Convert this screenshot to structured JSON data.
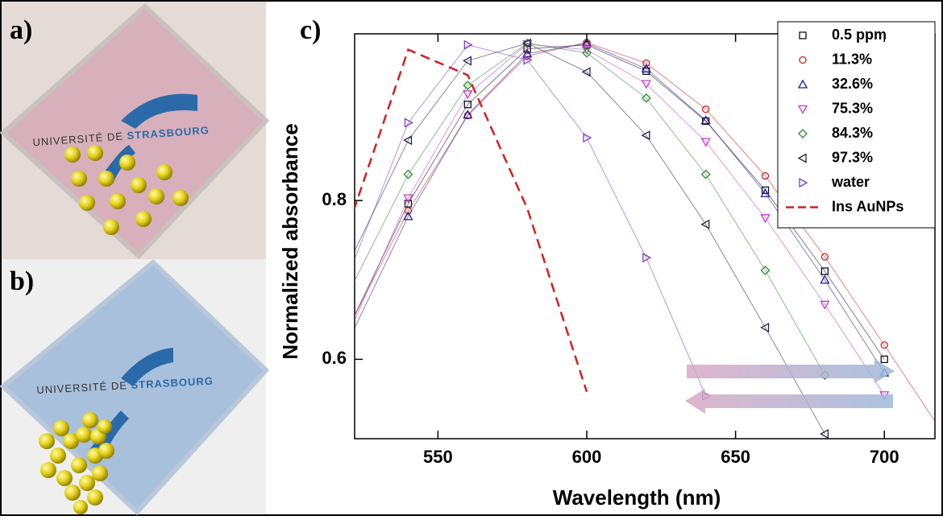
{
  "panel_labels": [
    "a)",
    "b)",
    "c)"
  ],
  "photo_logo": {
    "prefix": "UNIVERSITÉ DE",
    "suffix": "STRASBOURG"
  },
  "chart_data": {
    "type": "scatter",
    "x_label": "Wavelength (nm)",
    "y_label": "Normalized absorbance",
    "x": [
      520,
      540,
      560,
      580,
      600,
      620,
      640,
      660,
      680,
      700,
      720
    ],
    "xlim": [
      522,
      717
    ],
    "xticks": [
      550,
      600,
      650,
      700
    ],
    "ylim": [
      0.5,
      1.01
    ],
    "yticks": [
      0.6,
      0.8
    ],
    "legend": "upper right",
    "series": [
      {
        "name": "0.5 ppm",
        "color": "#111111",
        "marker": "square",
        "values": [
          0.64,
          0.796,
          0.921,
          0.991,
          0.996,
          0.963,
          0.9,
          0.813,
          0.711,
          0.6,
          null
        ]
      },
      {
        "name": "11.3%",
        "color": "#cc2222",
        "marker": "circle",
        "values": [
          0.64,
          0.787,
          0.907,
          0.982,
          0.999,
          0.973,
          0.915,
          0.831,
          0.729,
          0.618,
          0.505
        ]
      },
      {
        "name": "32.6%",
        "color": "#1c1c96",
        "marker": "triangle-up",
        "values": [
          0.624,
          0.78,
          0.908,
          0.985,
          0.998,
          0.966,
          0.901,
          0.809,
          0.7,
          0.583,
          null
        ]
      },
      {
        "name": "75.3%",
        "color": "#c43cc4",
        "marker": "triangle-down",
        "values": [
          0.632,
          0.803,
          0.934,
          0.997,
          0.99,
          0.947,
          0.874,
          0.778,
          0.669,
          0.555,
          null
        ]
      },
      {
        "name": "84.3%",
        "color": "#2a8a2a",
        "marker": "diamond",
        "values": [
          0.684,
          0.833,
          0.945,
          0.998,
          0.986,
          0.929,
          0.833,
          0.712,
          0.58,
          null,
          null
        ]
      },
      {
        "name": "97.3%",
        "color": "#22224a",
        "marker": "triangle-left",
        "values": [
          0.721,
          0.876,
          0.976,
          0.998,
          0.962,
          0.882,
          0.77,
          0.64,
          0.506,
          null,
          null
        ]
      },
      {
        "name": "water",
        "color": "#7a3cc8",
        "marker": "triangle-right",
        "values": [
          0.707,
          0.898,
          0.996,
          0.977,
          0.879,
          0.728,
          0.554,
          null,
          null,
          null,
          null
        ]
      },
      {
        "name": "Ins AuNPs",
        "color": "#d02020",
        "marker": "dashed",
        "values": [
          0.769,
          0.99,
          0.958,
          0.79,
          0.559,
          null,
          null,
          null,
          null,
          null,
          null
        ]
      }
    ]
  }
}
